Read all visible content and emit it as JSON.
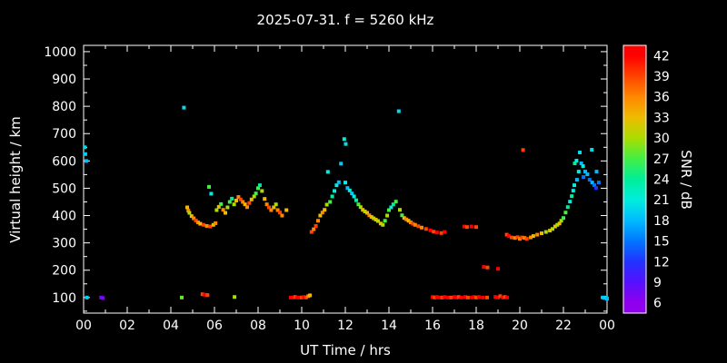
{
  "header": {
    "title": "2025-07-31. f = 5260 kHz"
  },
  "chart_data": {
    "type": "scatter",
    "title": "2025-07-31. f = 5260 kHz",
    "xlabel": "UT Time / hrs",
    "ylabel": "Virtual height / km",
    "background": "#000000",
    "frame_color": "#ffffff",
    "text_color": "#ffffff",
    "marker": "square",
    "marker_size_px": 4,
    "axes": {
      "xlim": [
        0,
        24
      ],
      "ylim": [
        43,
        1023
      ],
      "x_tick_hours": [
        0,
        2,
        4,
        6,
        8,
        10,
        12,
        14,
        16,
        18,
        20,
        22,
        24
      ],
      "x_tick_labels": [
        "00",
        "02",
        "04",
        "06",
        "08",
        "10",
        "12",
        "14",
        "16",
        "18",
        "20",
        "22",
        "00"
      ],
      "y_ticks": [
        100,
        200,
        300,
        400,
        500,
        600,
        700,
        800,
        900,
        1000
      ],
      "x_minor_step_hours": 1,
      "y_minor_step_km": 50,
      "grid": false
    },
    "colorbar": {
      "label": "SNR / dB",
      "ticks": [
        42,
        39,
        36,
        33,
        30,
        27,
        24,
        21,
        18,
        15,
        12,
        9,
        6
      ],
      "range": [
        4.5,
        43.5
      ],
      "colormap": [
        {
          "v": 6,
          "c": "#9000ee"
        },
        {
          "v": 9,
          "c": "#5511ff"
        },
        {
          "v": 12,
          "c": "#2233ff"
        },
        {
          "v": 15,
          "c": "#0077ff"
        },
        {
          "v": 18,
          "c": "#00bbff"
        },
        {
          "v": 21,
          "c": "#00eedd"
        },
        {
          "v": 24,
          "c": "#00ee99"
        },
        {
          "v": 27,
          "c": "#44ee44"
        },
        {
          "v": 30,
          "c": "#aadd00"
        },
        {
          "v": 33,
          "c": "#eebb00"
        },
        {
          "v": 36,
          "c": "#ff8800"
        },
        {
          "v": 39,
          "c": "#ff4400"
        },
        {
          "v": 42,
          "c": "#ff0000"
        }
      ]
    },
    "points_format": [
      "ut_hours",
      "virtual_height_km",
      "snr_db"
    ],
    "points": [
      [
        0.05,
        650,
        20
      ],
      [
        0.08,
        625,
        19
      ],
      [
        0.12,
        600,
        18
      ],
      [
        0.15,
        100,
        19
      ],
      [
        0.8,
        100,
        8
      ],
      [
        0.88,
        98,
        7
      ],
      [
        4.5,
        100,
        28
      ],
      [
        4.6,
        795,
        20
      ],
      [
        4.75,
        430,
        33
      ],
      [
        4.8,
        418,
        36
      ],
      [
        4.85,
        410,
        30
      ],
      [
        4.95,
        398,
        33
      ],
      [
        5.05,
        390,
        36
      ],
      [
        5.15,
        382,
        39
      ],
      [
        5.25,
        375,
        36
      ],
      [
        5.35,
        370,
        33
      ],
      [
        5.5,
        366,
        39
      ],
      [
        5.65,
        362,
        36
      ],
      [
        5.8,
        360,
        39
      ],
      [
        5.95,
        366,
        33
      ],
      [
        5.45,
        112,
        39
      ],
      [
        5.55,
        110,
        42
      ],
      [
        5.68,
        109,
        39
      ],
      [
        5.75,
        505,
        27
      ],
      [
        5.85,
        480,
        21
      ],
      [
        6.05,
        372,
        36
      ],
      [
        6.1,
        420,
        30
      ],
      [
        6.2,
        432,
        33
      ],
      [
        6.3,
        442,
        27
      ],
      [
        6.4,
        421,
        36
      ],
      [
        6.5,
        410,
        33
      ],
      [
        6.6,
        430,
        30
      ],
      [
        6.7,
        450,
        27
      ],
      [
        6.8,
        462,
        24
      ],
      [
        6.9,
        441,
        30
      ],
      [
        6.92,
        102,
        30
      ],
      [
        7.0,
        455,
        33
      ],
      [
        7.1,
        468,
        36
      ],
      [
        7.2,
        459,
        39
      ],
      [
        7.3,
        450,
        36
      ],
      [
        7.4,
        441,
        33
      ],
      [
        7.5,
        431,
        36
      ],
      [
        7.6,
        446,
        39
      ],
      [
        7.7,
        459,
        33
      ],
      [
        7.82,
        470,
        30
      ],
      [
        7.9,
        481,
        27
      ],
      [
        8.0,
        500,
        27
      ],
      [
        8.08,
        511,
        24
      ],
      [
        8.18,
        490,
        30
      ],
      [
        8.3,
        461,
        33
      ],
      [
        8.4,
        441,
        36
      ],
      [
        8.5,
        430,
        39
      ],
      [
        8.6,
        420,
        36
      ],
      [
        8.72,
        430,
        33
      ],
      [
        8.82,
        441,
        30
      ],
      [
        8.9,
        420,
        36
      ],
      [
        9.0,
        411,
        39
      ],
      [
        9.1,
        400,
        36
      ],
      [
        9.3,
        420,
        33
      ],
      [
        9.5,
        100,
        42
      ],
      [
        9.6,
        100,
        42
      ],
      [
        9.7,
        102,
        39
      ],
      [
        9.8,
        100,
        42
      ],
      [
        9.9,
        100,
        42
      ],
      [
        10.0,
        100,
        39
      ],
      [
        10.1,
        102,
        42
      ],
      [
        10.2,
        100,
        39
      ],
      [
        10.3,
        105,
        36
      ],
      [
        10.38,
        108,
        33
      ],
      [
        10.45,
        340,
        39
      ],
      [
        10.55,
        350,
        36
      ],
      [
        10.65,
        362,
        39
      ],
      [
        10.75,
        381,
        36
      ],
      [
        10.85,
        400,
        33
      ],
      [
        10.95,
        411,
        36
      ],
      [
        11.05,
        421,
        33
      ],
      [
        11.15,
        440,
        30
      ],
      [
        11.2,
        560,
        21
      ],
      [
        11.3,
        450,
        27
      ],
      [
        11.4,
        470,
        24
      ],
      [
        11.5,
        490,
        21
      ],
      [
        11.6,
        511,
        21
      ],
      [
        11.7,
        522,
        18
      ],
      [
        11.8,
        590,
        19
      ],
      [
        11.95,
        680,
        21
      ],
      [
        12.02,
        662,
        20
      ],
      [
        12.0,
        521,
        21
      ],
      [
        12.1,
        501,
        18
      ],
      [
        12.2,
        492,
        21
      ],
      [
        12.3,
        481,
        19
      ],
      [
        12.4,
        470,
        21
      ],
      [
        12.5,
        456,
        24
      ],
      [
        12.6,
        441,
        27
      ],
      [
        12.7,
        431,
        30
      ],
      [
        12.8,
        421,
        33
      ],
      [
        12.9,
        415,
        30
      ],
      [
        13.0,
        410,
        33
      ],
      [
        13.1,
        401,
        36
      ],
      [
        13.2,
        395,
        33
      ],
      [
        13.3,
        390,
        30
      ],
      [
        13.4,
        385,
        33
      ],
      [
        13.5,
        380,
        30
      ],
      [
        13.62,
        371,
        33
      ],
      [
        13.72,
        366,
        30
      ],
      [
        13.82,
        381,
        27
      ],
      [
        13.92,
        400,
        30
      ],
      [
        14.0,
        420,
        27
      ],
      [
        14.1,
        430,
        21
      ],
      [
        14.2,
        441,
        24
      ],
      [
        14.32,
        451,
        27
      ],
      [
        14.45,
        782,
        20
      ],
      [
        14.5,
        421,
        30
      ],
      [
        14.6,
        401,
        27
      ],
      [
        14.7,
        391,
        33
      ],
      [
        14.8,
        386,
        36
      ],
      [
        14.9,
        381,
        33
      ],
      [
        15.0,
        375,
        36
      ],
      [
        15.1,
        370,
        39
      ],
      [
        15.2,
        366,
        36
      ],
      [
        15.35,
        361,
        39
      ],
      [
        15.5,
        356,
        36
      ],
      [
        15.7,
        351,
        39
      ],
      [
        15.9,
        346,
        42
      ],
      [
        16.05,
        341,
        39
      ],
      [
        16.2,
        338,
        42
      ],
      [
        16.4,
        336,
        39
      ],
      [
        16.55,
        340,
        42
      ],
      [
        16.0,
        102,
        42
      ],
      [
        16.1,
        100,
        39
      ],
      [
        16.2,
        102,
        42
      ],
      [
        16.3,
        100,
        42
      ],
      [
        16.45,
        100,
        39
      ],
      [
        16.55,
        102,
        42
      ],
      [
        16.7,
        100,
        42
      ],
      [
        16.85,
        100,
        39
      ],
      [
        17.0,
        102,
        42
      ],
      [
        17.1,
        100,
        42
      ],
      [
        17.2,
        102,
        39
      ],
      [
        17.32,
        100,
        42
      ],
      [
        17.5,
        102,
        42
      ],
      [
        17.62,
        100,
        39
      ],
      [
        17.8,
        100,
        42
      ],
      [
        17.9,
        102,
        42
      ],
      [
        18.0,
        100,
        39
      ],
      [
        18.12,
        102,
        42
      ],
      [
        18.3,
        100,
        42
      ],
      [
        18.5,
        100,
        39
      ],
      [
        18.88,
        102,
        42
      ],
      [
        19.0,
        100,
        42
      ],
      [
        19.1,
        105,
        39
      ],
      [
        19.22,
        100,
        42
      ],
      [
        19.32,
        102,
        39
      ],
      [
        19.42,
        100,
        42
      ],
      [
        17.45,
        360,
        42
      ],
      [
        17.58,
        358,
        39
      ],
      [
        17.78,
        360,
        42
      ],
      [
        18.0,
        358,
        39
      ],
      [
        18.35,
        212,
        42
      ],
      [
        18.52,
        210,
        39
      ],
      [
        19.0,
        205,
        42
      ],
      [
        19.4,
        330,
        39
      ],
      [
        19.5,
        325,
        42
      ],
      [
        19.62,
        320,
        39
      ],
      [
        19.78,
        318,
        36
      ],
      [
        19.9,
        321,
        39
      ],
      [
        20.0,
        315,
        36
      ],
      [
        20.1,
        320,
        39
      ],
      [
        20.22,
        318,
        36
      ],
      [
        20.32,
        315,
        39
      ],
      [
        20.5,
        320,
        36
      ],
      [
        20.15,
        640,
        39
      ],
      [
        20.62,
        325,
        33
      ],
      [
        20.8,
        330,
        36
      ],
      [
        21.0,
        335,
        33
      ],
      [
        21.2,
        340,
        30
      ],
      [
        21.38,
        345,
        33
      ],
      [
        21.5,
        351,
        30
      ],
      [
        21.62,
        360,
        33
      ],
      [
        21.72,
        366,
        30
      ],
      [
        21.82,
        371,
        33
      ],
      [
        21.9,
        381,
        30
      ],
      [
        22.0,
        391,
        27
      ],
      [
        22.1,
        411,
        27
      ],
      [
        22.2,
        431,
        24
      ],
      [
        22.3,
        451,
        21
      ],
      [
        22.38,
        471,
        24
      ],
      [
        22.45,
        491,
        21
      ],
      [
        22.5,
        511,
        21
      ],
      [
        22.52,
        591,
        24
      ],
      [
        22.6,
        601,
        21
      ],
      [
        22.62,
        531,
        18
      ],
      [
        22.7,
        561,
        21
      ],
      [
        22.75,
        631,
        20
      ],
      [
        22.82,
        591,
        18
      ],
      [
        22.9,
        581,
        21
      ],
      [
        22.92,
        541,
        15
      ],
      [
        23.0,
        561,
        18
      ],
      [
        23.1,
        551,
        18
      ],
      [
        23.2,
        531,
        15
      ],
      [
        23.3,
        641,
        20
      ],
      [
        23.32,
        521,
        18
      ],
      [
        23.42,
        511,
        15
      ],
      [
        23.5,
        501,
        12
      ],
      [
        23.52,
        561,
        18
      ],
      [
        23.62,
        521,
        15
      ],
      [
        23.8,
        100,
        19
      ],
      [
        23.88,
        98,
        18
      ],
      [
        23.95,
        100,
        20
      ],
      [
        24.0,
        96,
        18
      ]
    ]
  }
}
